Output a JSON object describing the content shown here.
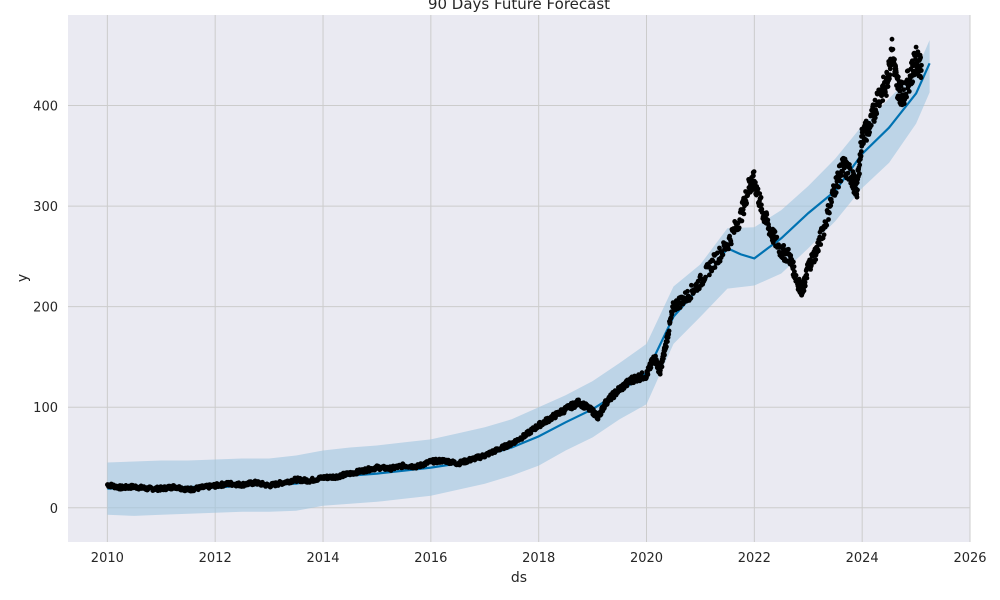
{
  "chart_data": {
    "type": "line",
    "title": "90 Days Future Forecast",
    "xlabel": "ds",
    "ylabel": "y",
    "xlim": [
      2009.27,
      2026.0
    ],
    "ylim": [
      -34,
      490
    ],
    "x_ticks": [
      2010,
      2012,
      2014,
      2016,
      2018,
      2020,
      2022,
      2024,
      2026
    ],
    "x_tick_labels": [
      "2010",
      "2012",
      "2014",
      "2016",
      "2018",
      "2020",
      "2022",
      "2024",
      "2026"
    ],
    "y_ticks": [
      0,
      100,
      200,
      300,
      400
    ],
    "y_tick_labels": [
      "0",
      "100",
      "200",
      "300",
      "400"
    ],
    "grid": true,
    "colors": {
      "background": "#eaeaf2",
      "grid": "#cccccc",
      "forecast": "#0072B2",
      "interval": "#9fc4e0",
      "observed": "#000000"
    },
    "series": [
      {
        "kind": "uncertainty_band",
        "x": [
          2010.0,
          2010.5,
          2011.0,
          2011.5,
          2012.0,
          2012.5,
          2013.0,
          2013.5,
          2014.0,
          2014.5,
          2015.0,
          2015.5,
          2016.0,
          2016.5,
          2017.0,
          2017.5,
          2018.0,
          2018.5,
          2019.0,
          2019.5,
          2020.0,
          2020.5,
          2021.0,
          2021.5,
          2022.0,
          2022.5,
          2023.0,
          2023.5,
          2024.0,
          2024.5,
          2025.0,
          2025.25
        ],
        "lower": [
          -7,
          -8,
          -7,
          -6,
          -5,
          -4,
          -4,
          -3,
          2,
          4,
          6,
          9,
          12,
          18,
          24,
          32,
          42,
          57,
          70,
          88,
          103,
          163,
          190,
          218,
          221,
          233,
          258,
          285,
          318,
          343,
          382,
          413
        ],
        "upper": [
          45,
          46,
          47,
          47,
          48,
          49,
          49,
          52,
          57,
          60,
          62,
          65,
          68,
          74,
          80,
          88,
          100,
          112,
          126,
          144,
          163,
          220,
          242,
          278,
          279,
          296,
          320,
          347,
          380,
          407,
          434,
          465
        ]
      },
      {
        "kind": "forecast",
        "x": [
          2010.0,
          2010.5,
          2011.0,
          2011.5,
          2012.0,
          2012.5,
          2013.0,
          2013.5,
          2014.0,
          2014.5,
          2015.0,
          2015.5,
          2016.0,
          2016.5,
          2017.0,
          2017.5,
          2018.0,
          2018.5,
          2019.0,
          2019.5,
          2020.0,
          2020.5,
          2021.0,
          2021.5,
          2021.75,
          2022.0,
          2022.25,
          2022.5,
          2023.0,
          2023.5,
          2024.0,
          2024.5,
          2025.0,
          2025.25
        ],
        "y": [
          19,
          20,
          19,
          21,
          20,
          22,
          23,
          24,
          29,
          32,
          34,
          37,
          40,
          44,
          52,
          60,
          71,
          85,
          98,
          115,
          134,
          190,
          220,
          258,
          252,
          248,
          258,
          268,
          293,
          315,
          352,
          378,
          412,
          442
        ]
      },
      {
        "kind": "observed",
        "x": [
          2010.0,
          2010.25,
          2010.5,
          2010.75,
          2011.0,
          2011.25,
          2011.5,
          2011.75,
          2012.0,
          2012.25,
          2012.5,
          2012.75,
          2013.0,
          2013.25,
          2013.5,
          2013.75,
          2014.0,
          2014.25,
          2014.5,
          2014.75,
          2015.0,
          2015.25,
          2015.5,
          2015.75,
          2016.0,
          2016.25,
          2016.5,
          2016.75,
          2017.0,
          2017.25,
          2017.5,
          2017.75,
          2018.0,
          2018.25,
          2018.5,
          2018.75,
          2019.0,
          2019.1,
          2019.25,
          2019.5,
          2019.75,
          2020.0,
          2020.15,
          2020.25,
          2020.35,
          2020.5,
          2020.75,
          2021.0,
          2021.25,
          2021.5,
          2021.75,
          2021.9,
          2022.0,
          2022.15,
          2022.3,
          2022.5,
          2022.65,
          2022.8,
          2022.9,
          2023.0,
          2023.15,
          2023.3,
          2023.5,
          2023.65,
          2023.8,
          2023.9,
          2024.0,
          2024.15,
          2024.3,
          2024.45,
          2024.55,
          2024.65,
          2024.75,
          2024.9,
          2025.0,
          2025.1
        ],
        "y": [
          23,
          20,
          21,
          19,
          19,
          21,
          18,
          20,
          22,
          24,
          23,
          25,
          22,
          25,
          28,
          27,
          30,
          31,
          34,
          37,
          40,
          39,
          42,
          41,
          46,
          47,
          44,
          48,
          52,
          58,
          64,
          72,
          82,
          90,
          98,
          105,
          96,
          90,
          105,
          118,
          128,
          132,
          150,
          135,
          160,
          200,
          210,
          225,
          245,
          262,
          290,
          320,
          325,
          295,
          275,
          255,
          250,
          225,
          215,
          240,
          255,
          280,
          320,
          340,
          330,
          315,
          370,
          380,
          410,
          420,
          455,
          420,
          410,
          430,
          445,
          440
        ]
      }
    ]
  }
}
